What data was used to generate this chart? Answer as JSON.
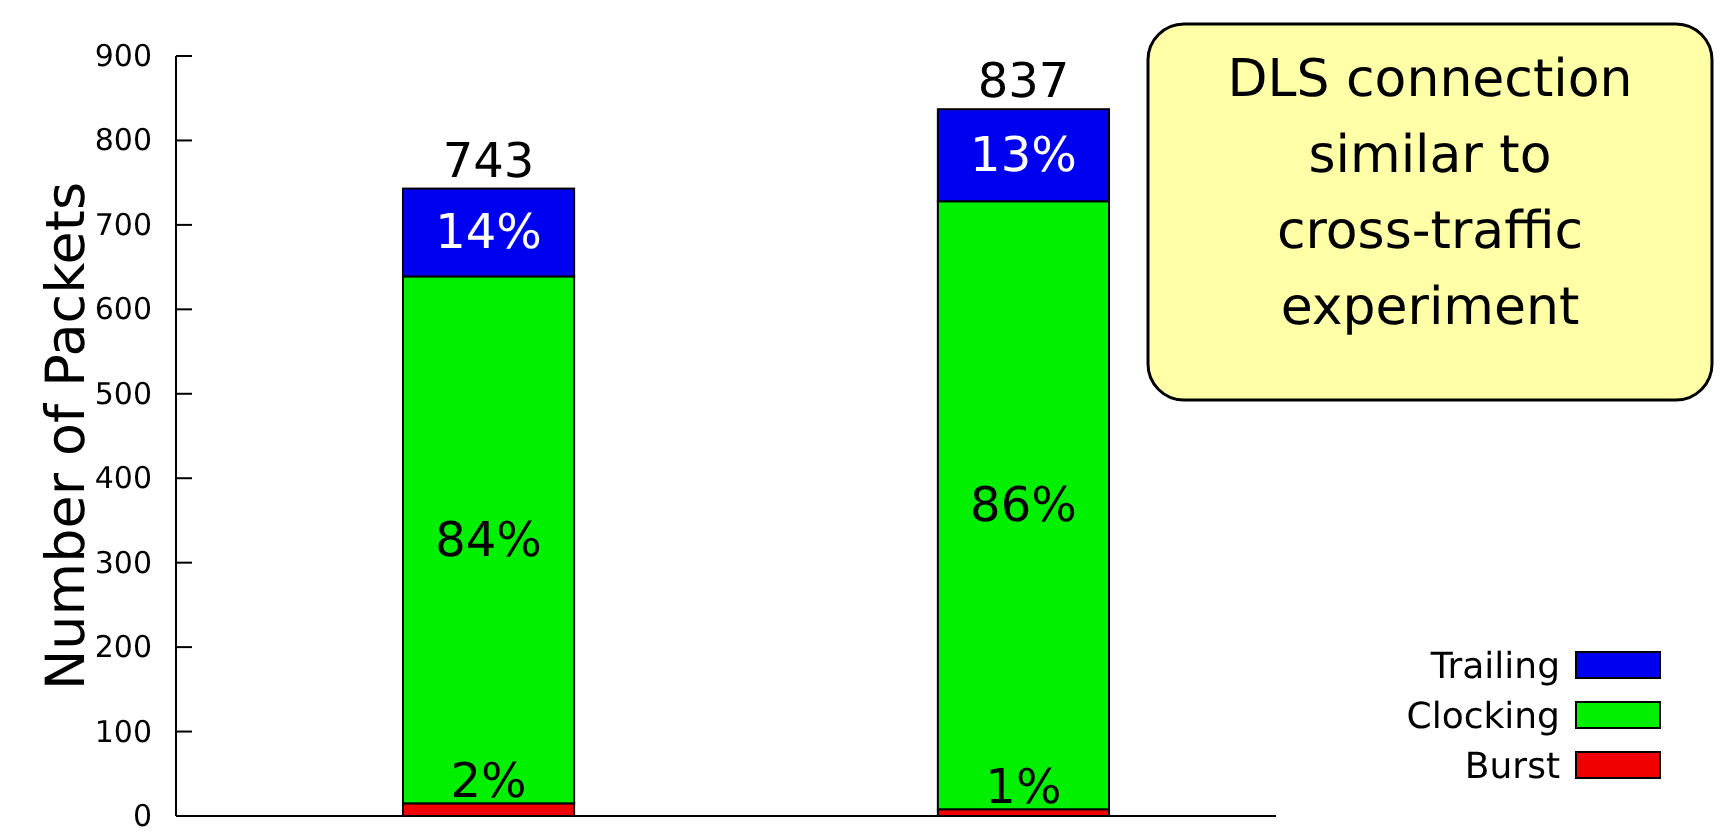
{
  "chart_data": {
    "type": "bar",
    "stacked": true,
    "ylabel": "Number of Packets",
    "categories": [
      null,
      null
    ],
    "series": [
      {
        "name": "Burst",
        "color": "#f00000",
        "values": [
          15,
          8
        ]
      },
      {
        "name": "Clocking",
        "color": "#00f000",
        "values": [
          624,
          720
        ]
      },
      {
        "name": "Trailing",
        "color": "#0000f0",
        "values": [
          104,
          109
        ]
      }
    ],
    "totals": [
      "743",
      "837"
    ],
    "ylim": [
      0,
      900
    ],
    "yticks": [
      0,
      100,
      200,
      300,
      400,
      500,
      600,
      700,
      800,
      900
    ],
    "legend": "bottom right",
    "annotations": [
      "DLS connection\nsimilar to\ncross-traffic\nexperiment",
      "2%",
      "84%",
      "14%",
      "1%",
      "86%",
      "13%"
    ]
  }
}
